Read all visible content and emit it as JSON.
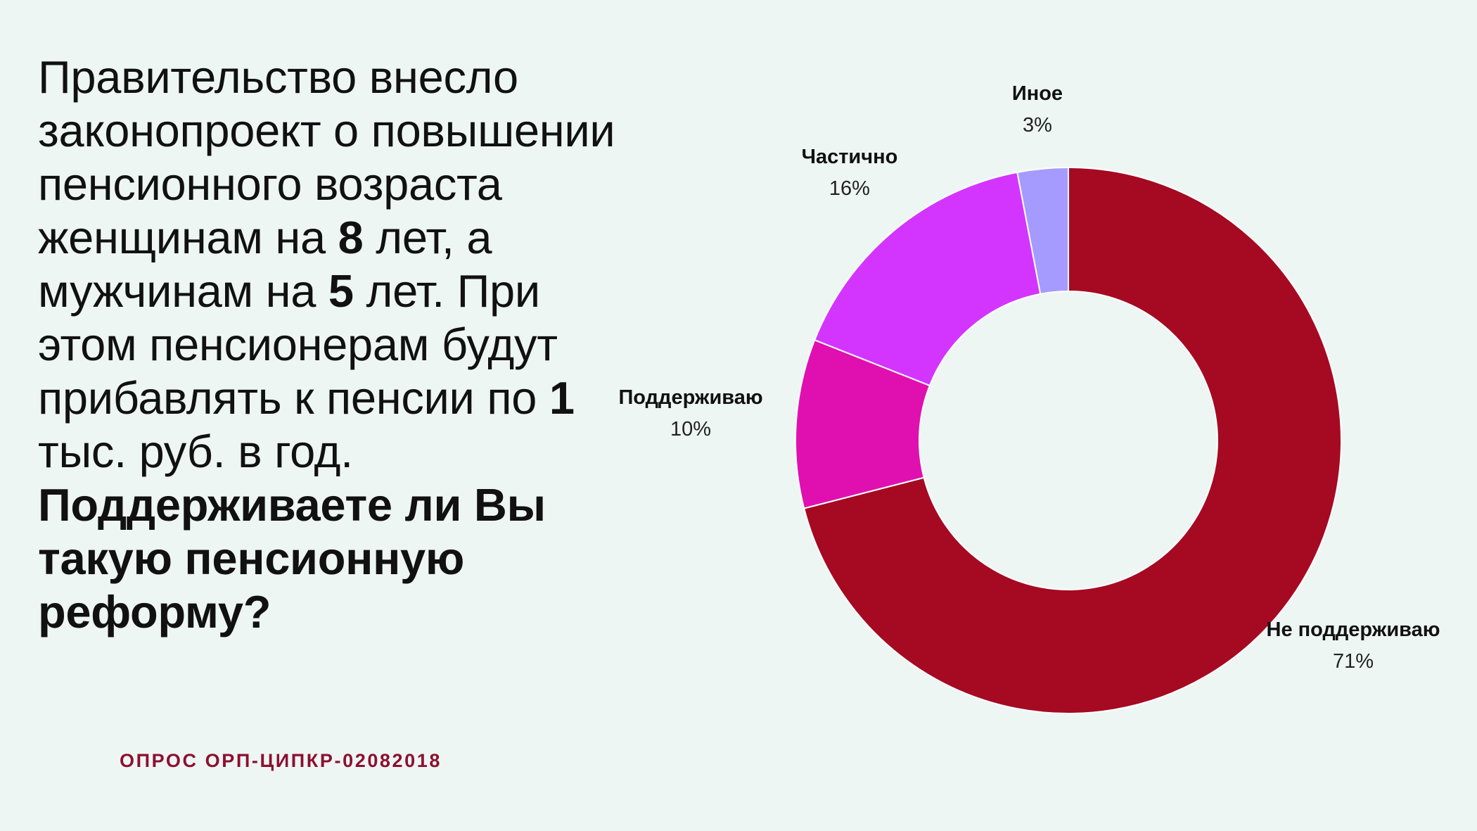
{
  "question": {
    "intro_1": "Правительство внесло законопроект о повышении пенсионного возраста женщинам на ",
    "women_years": "8",
    "intro_2": " лет, а мужчинам на ",
    "men_years": "5",
    "intro_3": " лет. При этом пенсионерам будут прибавлять к пенсии по ",
    "bonus_thousands": "1",
    "intro_4": " тыс. руб. в год.",
    "question_bold": "Поддерживаете ли Вы такую пенсионную реформу?"
  },
  "source": "ОПРОС ОРП-ЦИПКР-02082018",
  "chart_data": {
    "type": "pie",
    "style": "donut",
    "slices": [
      {
        "label": "Не поддерживаю",
        "value": 71,
        "value_label": "71%",
        "color": "#a50a22"
      },
      {
        "label": "Поддерживаю",
        "value": 10,
        "value_label": "10%",
        "color": "#e010b0"
      },
      {
        "label": "Частично",
        "value": 16,
        "value_label": "16%",
        "color": "#d335ff"
      },
      {
        "label": "Иное",
        "value": 3,
        "value_label": "3%",
        "color": "#a59bff"
      }
    ]
  }
}
